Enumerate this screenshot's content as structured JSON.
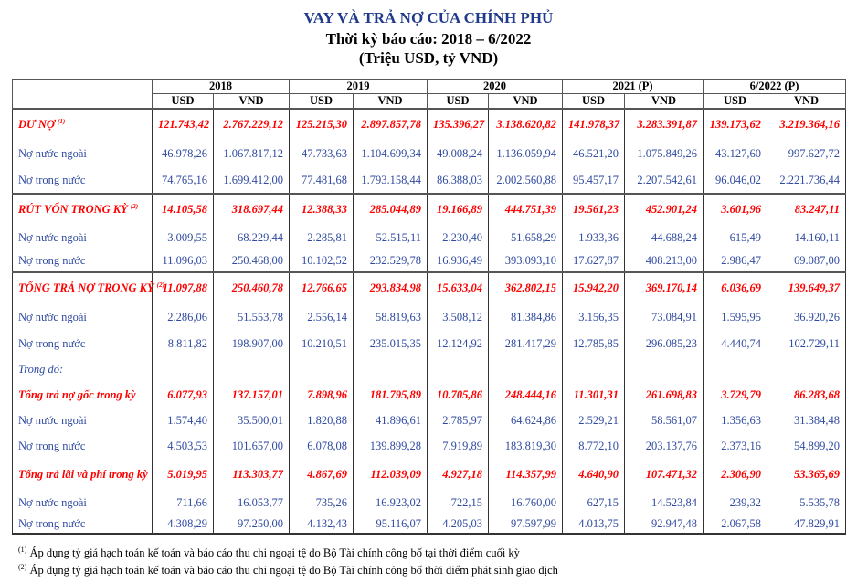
{
  "title": "VAY VÀ TRẢ NỢ CỦA CHÍNH PHỦ",
  "subtitle": "Thời kỳ báo cáo: 2018 – 6/2022",
  "unit": "(Triệu USD, tỷ VND)",
  "colors": {
    "title": "#1f3a8a",
    "highlight": "#ff0000",
    "text": "#2f4aa0"
  },
  "years": [
    "2018",
    "2019",
    "2020",
    "2021 (P)",
    "6/2022 (P)"
  ],
  "currencies": [
    "USD",
    "VND"
  ],
  "rows": [
    {
      "label": "DƯ NỢ",
      "sup": "(1)",
      "style": "hl",
      "values": [
        "121.743,42",
        "2.767.229,12",
        "125.215,30",
        "2.897.857,78",
        "135.396,27",
        "3.138.620,82",
        "141.978,37",
        "3.283.391,87",
        "139.173,62",
        "3.219.364,16"
      ]
    },
    {
      "label": "Nợ nước ngoài",
      "style": "",
      "values": [
        "46.978,26",
        "1.067.817,12",
        "47.733,63",
        "1.104.699,34",
        "49.008,24",
        "1.136.059,94",
        "46.521,20",
        "1.075.849,26",
        "43.127,60",
        "997.627,72"
      ]
    },
    {
      "label": "Nợ trong nước",
      "style": "",
      "values": [
        "74.765,16",
        "1.699.412,00",
        "77.481,68",
        "1.793.158,44",
        "86.388,03",
        "2.002.560,88",
        "95.457,17",
        "2.207.542,61",
        "96.046,02",
        "2.221.736,44"
      ]
    },
    {
      "label": "RÚT VỐN TRONG KỲ",
      "sup": "(2)",
      "style": "hl",
      "values": [
        "14.105,58",
        "318.697,44",
        "12.388,33",
        "285.044,89",
        "19.166,89",
        "444.751,39",
        "19.561,23",
        "452.901,24",
        "3.601,96",
        "83.247,11"
      ]
    },
    {
      "label": "Nợ nước ngoài",
      "style": "",
      "values": [
        "3.009,55",
        "68.229,44",
        "2.285,81",
        "52.515,11",
        "2.230,40",
        "51.658,29",
        "1.933,36",
        "44.688,24",
        "615,49",
        "14.160,11"
      ]
    },
    {
      "label": "Nợ trong nước",
      "style": "",
      "values": [
        "11.096,03",
        "250.468,00",
        "10.102,52",
        "232.529,78",
        "16.936,49",
        "393.093,10",
        "17.627,87",
        "408.213,00",
        "2.986,47",
        "69.087,00"
      ]
    },
    {
      "label": "TỔNG TRẢ NỢ TRONG KỲ",
      "sup": "(2)",
      "style": "hl",
      "values": [
        "11.097,88",
        "250.460,78",
        "12.766,65",
        "293.834,98",
        "15.633,04",
        "362.802,15",
        "15.942,20",
        "369.170,14",
        "6.036,69",
        "139.649,37"
      ]
    },
    {
      "label": "Nợ nước ngoài",
      "style": "",
      "values": [
        "2.286,06",
        "51.553,78",
        "2.556,14",
        "58.819,63",
        "3.508,12",
        "81.384,86",
        "3.156,35",
        "73.084,91",
        "1.595,95",
        "36.920,26"
      ]
    },
    {
      "label": "Nợ trong nước",
      "style": "",
      "values": [
        "8.811,82",
        "198.907,00",
        "10.210,51",
        "235.015,35",
        "12.124,92",
        "281.417,29",
        "12.785,85",
        "296.085,23",
        "4.440,74",
        "102.729,11"
      ]
    },
    {
      "label": "Trong đó:",
      "style": "it",
      "values": [
        "",
        "",
        "",
        "",
        "",
        "",
        "",
        "",
        "",
        ""
      ]
    },
    {
      "label": "Tổng trả nợ gốc trong kỳ",
      "style": "hl",
      "values": [
        "6.077,93",
        "137.157,01",
        "7.898,96",
        "181.795,89",
        "10.705,86",
        "248.444,16",
        "11.301,31",
        "261.698,83",
        "3.729,79",
        "86.283,68"
      ]
    },
    {
      "label": "Nợ nước ngoài",
      "style": "",
      "values": [
        "1.574,40",
        "35.500,01",
        "1.820,88",
        "41.896,61",
        "2.785,97",
        "64.624,86",
        "2.529,21",
        "58.561,07",
        "1.356,63",
        "31.384,48"
      ]
    },
    {
      "label": "Nợ trong nước",
      "style": "",
      "values": [
        "4.503,53",
        "101.657,00",
        "6.078,08",
        "139.899,28",
        "7.919,89",
        "183.819,30",
        "8.772,10",
        "203.137,76",
        "2.373,16",
        "54.899,20"
      ]
    },
    {
      "label": "Tổng trả lãi và phí trong kỳ",
      "style": "hl",
      "values": [
        "5.019,95",
        "113.303,77",
        "4.867,69",
        "112.039,09",
        "4.927,18",
        "114.357,99",
        "4.640,90",
        "107.471,32",
        "2.306,90",
        "53.365,69"
      ]
    },
    {
      "label": "Nợ nước ngoài",
      "style": "",
      "values": [
        "711,66",
        "16.053,77",
        "735,26",
        "16.923,02",
        "722,15",
        "16.760,00",
        "627,15",
        "14.523,84",
        "239,32",
        "5.535,78"
      ]
    },
    {
      "label": "Nợ trong nước",
      "style": "",
      "values": [
        "4.308,29",
        "97.250,00",
        "4.132,43",
        "95.116,07",
        "4.205,03",
        "97.597,99",
        "4.013,75",
        "92.947,48",
        "2.067,58",
        "47.829,91"
      ]
    }
  ],
  "footnotes": [
    {
      "mark": "(1)",
      "text": "Áp dụng tỷ giá hạch toán kế toán và báo cáo thu chi ngoại tệ do Bộ Tài chính công bố tại thời điểm cuối kỳ"
    },
    {
      "mark": "(2)",
      "text": "Áp dụng tỷ giá hạch toán kế toán và báo cáo thu chi ngoại tệ do Bộ Tài chính công bố thời điểm phát sinh giao dịch"
    }
  ]
}
